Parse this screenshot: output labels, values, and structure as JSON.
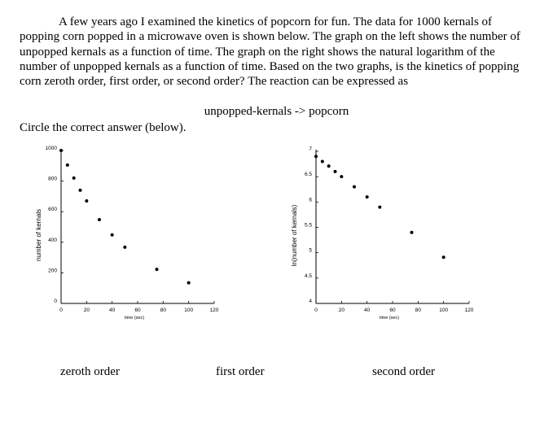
{
  "question": {
    "paragraph": "A few years ago I examined the kinetics of popcorn for fun. The data for 1000 kernals of popping corn popped in a microwave oven is shown below. The graph on the left shows the number of unpopped kernals as a function of time. The graph on the right shows the natural logarithm of the number of unpopped kernals as a function of time. Based on the two graphs, is the kinetics of popping corn zeroth order, first order, or second order? The reaction can be expressed as",
    "equation": "unpopped-kernals -> popcorn",
    "instruction": "Circle the correct answer (below)."
  },
  "answers": {
    "zeroth": "zeroth order",
    "first": "first order",
    "second": "second order"
  },
  "chart_data": [
    {
      "type": "scatter",
      "xlabel": "time (sec)",
      "ylabel": "number of kernals",
      "xlim": [
        0,
        120
      ],
      "ylim": [
        0,
        1000
      ],
      "xticks": [
        0,
        20,
        40,
        60,
        80,
        100,
        120
      ],
      "yticks": [
        0,
        200,
        400,
        600,
        800,
        1000
      ],
      "points": [
        {
          "x": 0,
          "y": 1000
        },
        {
          "x": 5,
          "y": 905
        },
        {
          "x": 10,
          "y": 820
        },
        {
          "x": 15,
          "y": 740
        },
        {
          "x": 20,
          "y": 670
        },
        {
          "x": 30,
          "y": 548
        },
        {
          "x": 40,
          "y": 448
        },
        {
          "x": 50,
          "y": 368
        },
        {
          "x": 75,
          "y": 223
        },
        {
          "x": 100,
          "y": 135
        }
      ]
    },
    {
      "type": "scatter",
      "xlabel": "time (sec)",
      "ylabel": "ln(number of kernals)",
      "xlim": [
        0,
        120
      ],
      "ylim": [
        4,
        7
      ],
      "xticks": [
        0,
        20,
        40,
        60,
        80,
        100,
        120
      ],
      "yticks": [
        4,
        4.5,
        5,
        5.5,
        6,
        6.5,
        7
      ],
      "points": [
        {
          "x": 0,
          "y": 6.9
        },
        {
          "x": 5,
          "y": 6.8
        },
        {
          "x": 10,
          "y": 6.71
        },
        {
          "x": 15,
          "y": 6.6
        },
        {
          "x": 20,
          "y": 6.5
        },
        {
          "x": 30,
          "y": 6.3
        },
        {
          "x": 40,
          "y": 6.1
        },
        {
          "x": 50,
          "y": 5.9
        },
        {
          "x": 75,
          "y": 5.4
        },
        {
          "x": 100,
          "y": 4.91
        }
      ]
    }
  ]
}
